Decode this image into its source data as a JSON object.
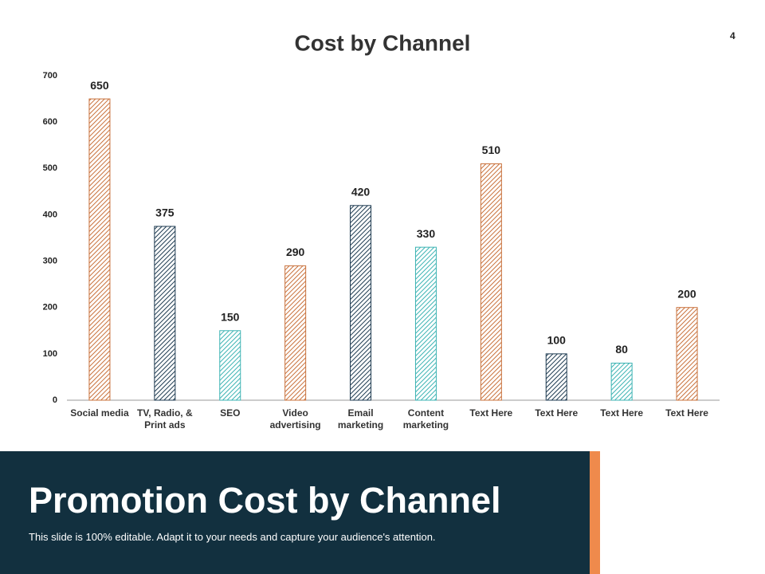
{
  "page_number": "4",
  "chart_data": {
    "type": "bar",
    "title": "Cost by Channel",
    "categories": [
      "Social media",
      "TV, Radio, & Print ads",
      "SEO",
      "Video advertising",
      "Email marketing",
      "Content marketing",
      "Text Here",
      "Text Here",
      "Text Here",
      "Text Here"
    ],
    "values": [
      650,
      375,
      150,
      290,
      420,
      330,
      510,
      100,
      80,
      200
    ],
    "colors": [
      "#c8703a",
      "#1d3a50",
      "#3bb3b3",
      "#c8703a",
      "#1d3a50",
      "#3bb3b3",
      "#c8703a",
      "#1d3a50",
      "#3bb3b3",
      "#c8703a"
    ],
    "ylim": [
      0,
      700
    ],
    "yticks": [
      0,
      100,
      200,
      300,
      400,
      500,
      600,
      700
    ]
  },
  "footer": {
    "title": "Promotion Cost by Channel",
    "subtitle": "This slide is 100% editable. Adapt it to your needs and capture your audience's attention."
  }
}
